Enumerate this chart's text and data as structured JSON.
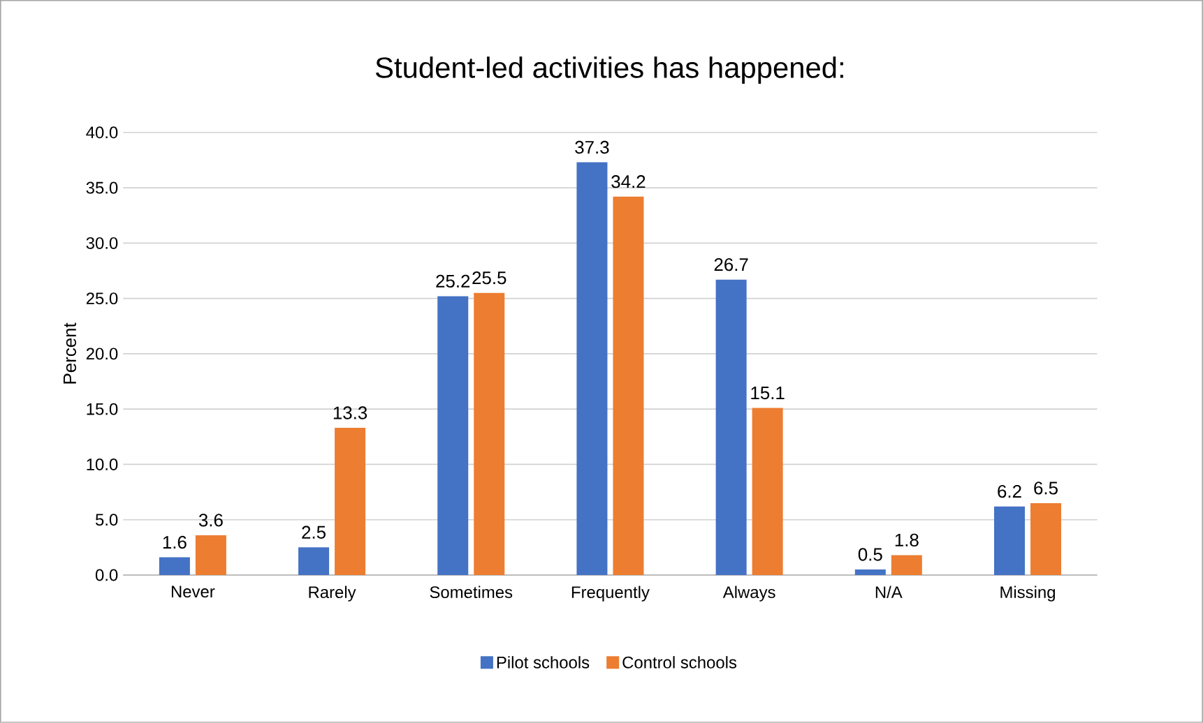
{
  "chart_data": {
    "type": "bar",
    "title": "Student-led activities has happened:",
    "ylabel": "Percent",
    "categories": [
      "Never",
      "Rarely",
      "Sometimes",
      "Frequently",
      "Always",
      "N/A",
      "Missing"
    ],
    "series": [
      {
        "name": "Pilot schools",
        "color": "#4472c4",
        "values": [
          1.6,
          2.5,
          25.2,
          37.3,
          26.7,
          0.5,
          6.2
        ]
      },
      {
        "name": "Control schools",
        "color": "#ed7d31",
        "values": [
          3.6,
          13.3,
          25.5,
          34.2,
          15.1,
          1.8,
          6.5
        ]
      }
    ],
    "ylim": [
      0,
      40
    ],
    "yticks": [
      {
        "value": 0,
        "label": "0.0"
      },
      {
        "value": 5,
        "label": "5.0"
      },
      {
        "value": 10,
        "label": "10.0"
      },
      {
        "value": 15,
        "label": "15.0"
      },
      {
        "value": 20,
        "label": "20.0"
      },
      {
        "value": 25,
        "label": "25.0"
      },
      {
        "value": 30,
        "label": "30.0"
      },
      {
        "value": 35,
        "label": "35.0"
      },
      {
        "value": 40,
        "label": "40.0"
      }
    ],
    "grid": "y",
    "legend": "bottom",
    "data_labels": true
  }
}
